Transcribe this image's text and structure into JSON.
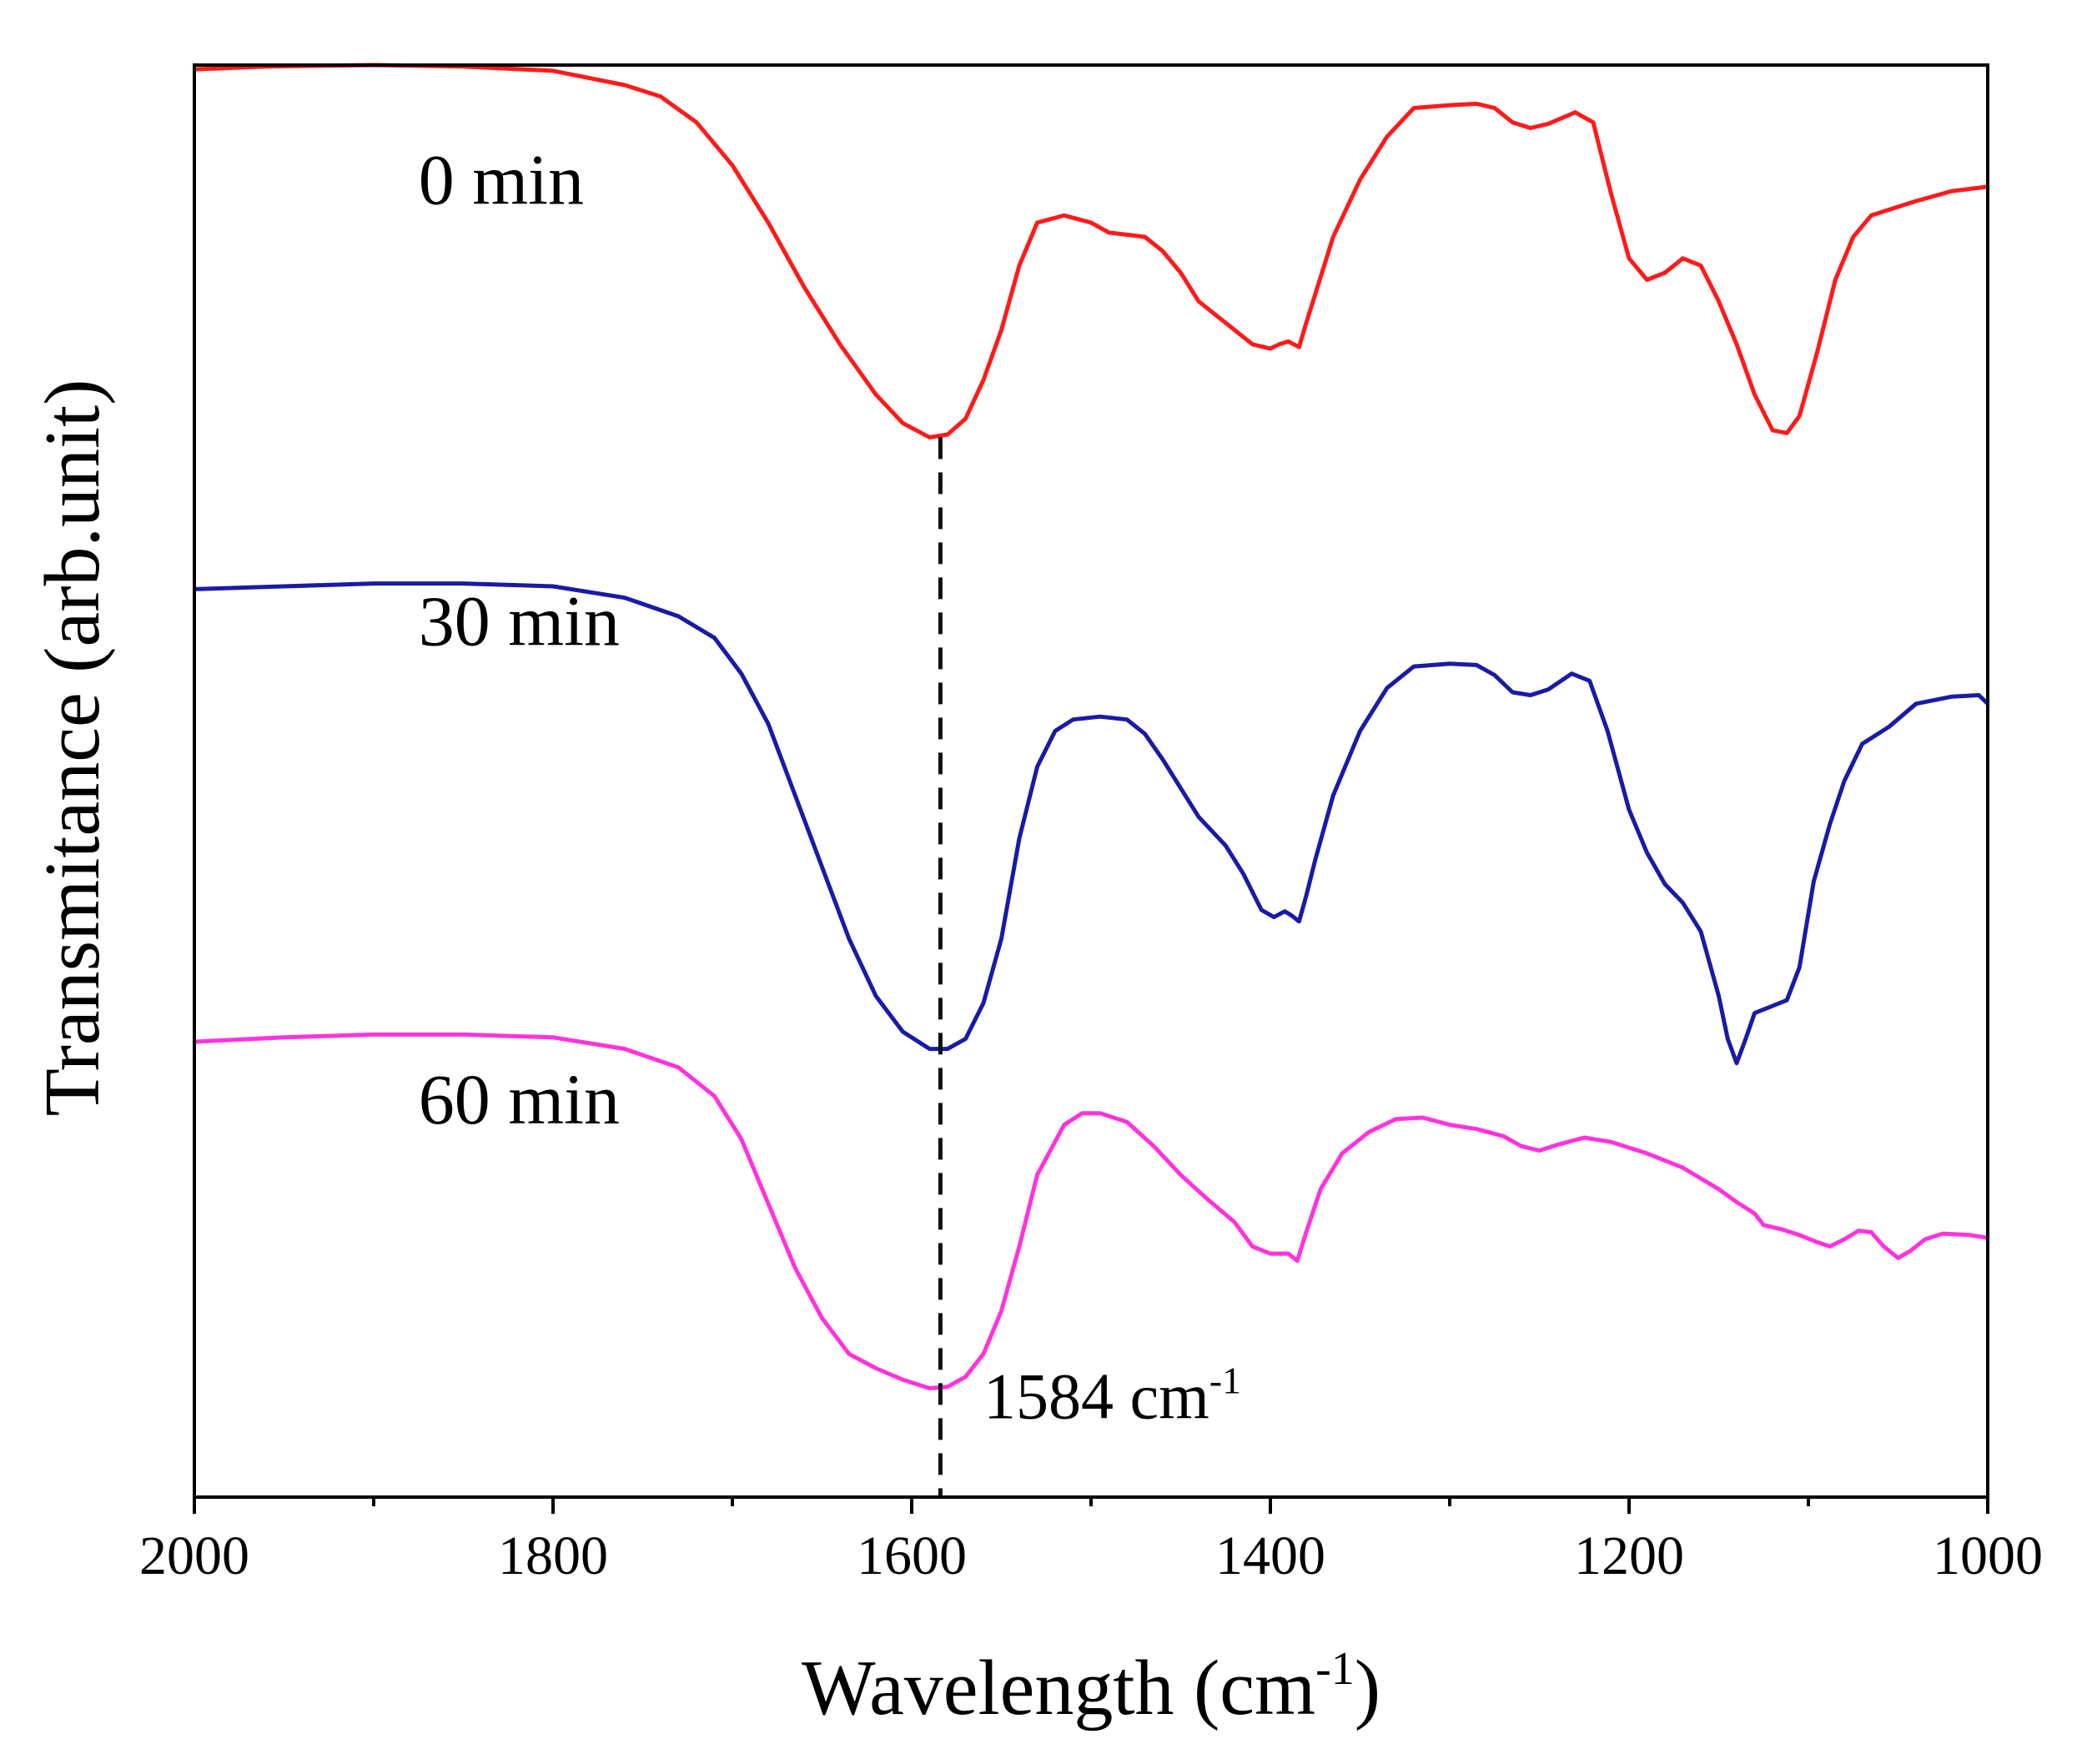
{
  "chart_data": {
    "type": "line",
    "title": "",
    "xlabel": "Wavelength (cm",
    "xlabel_sup": "-1",
    "xlabel_end": ")",
    "ylabel": "Transmitance (arb.unit)",
    "xlim": [
      2000,
      1000
    ],
    "xticks": [
      2000,
      1800,
      1600,
      1400,
      1200,
      1000
    ],
    "xtick_labels": [
      "2000",
      "1800",
      "1600",
      "1400",
      "1200",
      "1000"
    ],
    "xminor_ticks": [
      1900,
      1700,
      1500,
      1300,
      1100
    ],
    "ylim": [
      0,
      100
    ],
    "yticks_shown": false,
    "grid": false,
    "series": [
      {
        "name": "0 min",
        "label": "0 min",
        "color": "#ff1a1a",
        "label_pos": [
          1875,
          90.3
        ],
        "points": [
          [
            2000,
            99.7
          ],
          [
            1960,
            99.9
          ],
          [
            1900,
            100
          ],
          [
            1850,
            99.9
          ],
          [
            1800,
            99.6
          ],
          [
            1760,
            98.6
          ],
          [
            1740,
            97.8
          ],
          [
            1720,
            96
          ],
          [
            1700,
            93
          ],
          [
            1680,
            89
          ],
          [
            1660,
            84.5
          ],
          [
            1640,
            80.5
          ],
          [
            1620,
            77
          ],
          [
            1605,
            75
          ],
          [
            1590,
            74
          ],
          [
            1580,
            74.2
          ],
          [
            1570,
            75.3
          ],
          [
            1560,
            78
          ],
          [
            1550,
            81.5
          ],
          [
            1540,
            86
          ],
          [
            1530,
            89
          ],
          [
            1515,
            89.5
          ],
          [
            1500,
            89
          ],
          [
            1490,
            88.3
          ],
          [
            1470,
            88
          ],
          [
            1460,
            87
          ],
          [
            1450,
            85.5
          ],
          [
            1440,
            83.5
          ],
          [
            1425,
            82
          ],
          [
            1410,
            80.5
          ],
          [
            1400,
            80.2
          ],
          [
            1395,
            80.5
          ],
          [
            1390,
            80.7
          ],
          [
            1387,
            80.5
          ],
          [
            1384,
            80.3
          ],
          [
            1380,
            82
          ],
          [
            1375,
            84
          ],
          [
            1365,
            88
          ],
          [
            1350,
            92
          ],
          [
            1335,
            95
          ],
          [
            1320,
            97
          ],
          [
            1300,
            97.2
          ],
          [
            1285,
            97.3
          ],
          [
            1275,
            97
          ],
          [
            1265,
            96
          ],
          [
            1255,
            95.6
          ],
          [
            1245,
            95.9
          ],
          [
            1230,
            96.7
          ],
          [
            1220,
            96
          ],
          [
            1210,
            91
          ],
          [
            1200,
            86.5
          ],
          [
            1190,
            85
          ],
          [
            1180,
            85.5
          ],
          [
            1170,
            86.5
          ],
          [
            1160,
            86
          ],
          [
            1150,
            83.5
          ],
          [
            1140,
            80.5
          ],
          [
            1130,
            77
          ],
          [
            1120,
            74.5
          ],
          [
            1112,
            74.3
          ],
          [
            1105,
            75.5
          ],
          [
            1095,
            80
          ],
          [
            1085,
            85
          ],
          [
            1075,
            88
          ],
          [
            1065,
            89.5
          ],
          [
            1040,
            90.5
          ],
          [
            1020,
            91.2
          ],
          [
            1000,
            91.5
          ]
        ]
      },
      {
        "name": "30 min",
        "label": "30 min",
        "color": "#1a1aa6",
        "label_pos": [
          1875,
          59.5
        ],
        "points": [
          [
            2000,
            63.4
          ],
          [
            1950,
            63.6
          ],
          [
            1900,
            63.8
          ],
          [
            1850,
            63.8
          ],
          [
            1800,
            63.6
          ],
          [
            1760,
            62.8
          ],
          [
            1730,
            61.5
          ],
          [
            1710,
            60
          ],
          [
            1695,
            57.5
          ],
          [
            1680,
            54
          ],
          [
            1665,
            49
          ],
          [
            1650,
            44
          ],
          [
            1635,
            39
          ],
          [
            1620,
            35
          ],
          [
            1605,
            32.5
          ],
          [
            1590,
            31.3
          ],
          [
            1580,
            31.3
          ],
          [
            1570,
            32
          ],
          [
            1560,
            34.5
          ],
          [
            1550,
            39
          ],
          [
            1540,
            46
          ],
          [
            1530,
            51
          ],
          [
            1520,
            53.5
          ],
          [
            1510,
            54.3
          ],
          [
            1495,
            54.5
          ],
          [
            1480,
            54.3
          ],
          [
            1470,
            53.3
          ],
          [
            1460,
            51.5
          ],
          [
            1450,
            49.5
          ],
          [
            1440,
            47.5
          ],
          [
            1425,
            45.5
          ],
          [
            1415,
            43.5
          ],
          [
            1405,
            41
          ],
          [
            1398,
            40.5
          ],
          [
            1392,
            40.9
          ],
          [
            1388,
            40.6
          ],
          [
            1384,
            40.2
          ],
          [
            1380,
            42
          ],
          [
            1375,
            44.5
          ],
          [
            1365,
            49
          ],
          [
            1350,
            53.5
          ],
          [
            1335,
            56.5
          ],
          [
            1320,
            58
          ],
          [
            1300,
            58.2
          ],
          [
            1285,
            58.1
          ],
          [
            1275,
            57.4
          ],
          [
            1265,
            56.2
          ],
          [
            1255,
            56
          ],
          [
            1245,
            56.4
          ],
          [
            1232,
            57.5
          ],
          [
            1222,
            57
          ],
          [
            1212,
            53.5
          ],
          [
            1200,
            48
          ],
          [
            1190,
            45
          ],
          [
            1180,
            42.8
          ],
          [
            1170,
            41.5
          ],
          [
            1160,
            39.5
          ],
          [
            1150,
            35
          ],
          [
            1145,
            32
          ],
          [
            1140,
            30.3
          ],
          [
            1135,
            32
          ],
          [
            1130,
            33.8
          ],
          [
            1120,
            34.3
          ],
          [
            1112,
            34.7
          ],
          [
            1105,
            37
          ],
          [
            1097,
            43
          ],
          [
            1088,
            47
          ],
          [
            1080,
            50
          ],
          [
            1070,
            52.6
          ],
          [
            1055,
            53.8
          ],
          [
            1040,
            55.4
          ],
          [
            1020,
            55.9
          ],
          [
            1005,
            56
          ],
          [
            1000,
            55.4
          ]
        ]
      },
      {
        "name": "60 min",
        "label": "60 min",
        "color": "#ff33dd",
        "label_pos": [
          1875,
          26.1
        ],
        "points": [
          [
            2000,
            31.8
          ],
          [
            1950,
            32.1
          ],
          [
            1900,
            32.3
          ],
          [
            1850,
            32.3
          ],
          [
            1800,
            32.1
          ],
          [
            1760,
            31.3
          ],
          [
            1730,
            30
          ],
          [
            1710,
            28
          ],
          [
            1695,
            25
          ],
          [
            1680,
            20.5
          ],
          [
            1665,
            16
          ],
          [
            1650,
            12.5
          ],
          [
            1635,
            10
          ],
          [
            1620,
            9
          ],
          [
            1605,
            8.2
          ],
          [
            1590,
            7.6
          ],
          [
            1580,
            7.7
          ],
          [
            1570,
            8.4
          ],
          [
            1560,
            10
          ],
          [
            1550,
            13
          ],
          [
            1540,
            17.5
          ],
          [
            1530,
            22.5
          ],
          [
            1515,
            26
          ],
          [
            1505,
            26.8
          ],
          [
            1495,
            26.8
          ],
          [
            1480,
            26.2
          ],
          [
            1465,
            24.5
          ],
          [
            1450,
            22.5
          ],
          [
            1435,
            20.8
          ],
          [
            1420,
            19.2
          ],
          [
            1410,
            17.5
          ],
          [
            1400,
            17
          ],
          [
            1390,
            17
          ],
          [
            1385,
            16.5
          ],
          [
            1380,
            18.5
          ],
          [
            1372,
            21.5
          ],
          [
            1360,
            24
          ],
          [
            1345,
            25.5
          ],
          [
            1330,
            26.4
          ],
          [
            1315,
            26.5
          ],
          [
            1300,
            26
          ],
          [
            1285,
            25.7
          ],
          [
            1270,
            25.2
          ],
          [
            1260,
            24.5
          ],
          [
            1250,
            24.2
          ],
          [
            1240,
            24.6
          ],
          [
            1225,
            25.1
          ],
          [
            1210,
            24.8
          ],
          [
            1190,
            24
          ],
          [
            1170,
            23
          ],
          [
            1150,
            21.5
          ],
          [
            1140,
            20.6
          ],
          [
            1130,
            19.8
          ],
          [
            1125,
            19
          ],
          [
            1115,
            18.7
          ],
          [
            1105,
            18.3
          ],
          [
            1095,
            17.8
          ],
          [
            1088,
            17.5
          ],
          [
            1080,
            18
          ],
          [
            1072,
            18.6
          ],
          [
            1065,
            18.5
          ],
          [
            1058,
            17.5
          ],
          [
            1050,
            16.7
          ],
          [
            1043,
            17.2
          ],
          [
            1035,
            18
          ],
          [
            1025,
            18.4
          ],
          [
            1010,
            18.3
          ],
          [
            1000,
            18.1
          ]
        ]
      }
    ],
    "annotation": {
      "marker_x": 1584,
      "line_y_range": [
        0,
        74
      ],
      "label": "1584 cm",
      "label_sup": "-1",
      "label_pos": [
        1560,
        5.5
      ]
    }
  }
}
